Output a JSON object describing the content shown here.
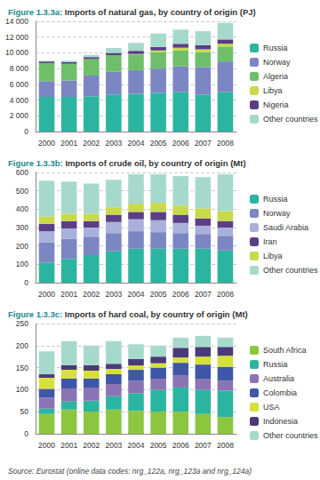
{
  "chart_data": [
    {
      "type": "bar",
      "title": "Figure 1.3.3a: Imports of natural gas, by country of origin (PJ)",
      "categories": [
        "2000",
        "2001",
        "2002",
        "2003",
        "2004",
        "2005",
        "2006",
        "2007",
        "2008"
      ],
      "series": [
        {
          "name": "Russia",
          "color": "#2bb5a0",
          "values": [
            4400,
            4400,
            4500,
            4700,
            4800,
            4900,
            5000,
            4700,
            5000
          ]
        },
        {
          "name": "Norway",
          "color": "#7b86c2",
          "values": [
            2000,
            2100,
            2600,
            2900,
            3000,
            3100,
            3300,
            3500,
            3900
          ]
        },
        {
          "name": "Algeria",
          "color": "#6fbf6a",
          "values": [
            2300,
            2100,
            2100,
            2100,
            2000,
            2100,
            2000,
            1900,
            1900
          ]
        },
        {
          "name": "Libya",
          "color": "#c8d94a",
          "values": [
            0,
            0,
            0,
            0,
            50,
            200,
            350,
            350,
            350
          ]
        },
        {
          "name": "Nigeria",
          "color": "#5b3f86",
          "values": [
            200,
            200,
            250,
            300,
            400,
            450,
            500,
            500,
            550
          ]
        },
        {
          "name": "Other countries",
          "color": "#a6d9cc",
          "values": [
            100,
            200,
            300,
            600,
            1000,
            1700,
            1800,
            1800,
            2100
          ]
        }
      ],
      "ylim": [
        0,
        14000
      ],
      "yticks": [
        0,
        {
          "value": 2000,
          "label": "2 000"
        },
        {
          "value": 4000,
          "label": "4 000"
        },
        {
          "value": 6000,
          "label": "6 000"
        },
        {
          "value": 8000,
          "label": "8 000"
        },
        {
          "value": 10000,
          "label": "10 000"
        },
        {
          "value": 12000,
          "label": "12 000"
        },
        {
          "value": 14000,
          "label": "14 000"
        }
      ],
      "stacked": true,
      "grid": true,
      "legend": "right"
    },
    {
      "type": "bar",
      "title": "Figure 1.3.3b: Imports of crude oil, by country of origin (Mt)",
      "categories": [
        "2000",
        "2001",
        "2002",
        "2003",
        "2004",
        "2005",
        "2006",
        "2007",
        "2008"
      ],
      "series": [
        {
          "name": "Russia",
          "color": "#2bb5a0",
          "values": [
            110,
            130,
            150,
            170,
            185,
            185,
            185,
            185,
            175
          ]
        },
        {
          "name": "Norway",
          "color": "#7b86c2",
          "values": [
            110,
            110,
            100,
            100,
            95,
            90,
            85,
            80,
            80
          ]
        },
        {
          "name": "Saudi Arabia",
          "color": "#a9b0dc",
          "values": [
            60,
            55,
            50,
            60,
            65,
            65,
            55,
            45,
            45
          ]
        },
        {
          "name": "Iran",
          "color": "#5b3f86",
          "values": [
            40,
            40,
            35,
            40,
            40,
            45,
            45,
            40,
            35
          ]
        },
        {
          "name": "Libya",
          "color": "#c8d94a",
          "values": [
            40,
            40,
            40,
            40,
            45,
            50,
            50,
            55,
            55
          ]
        },
        {
          "name": "Other countries",
          "color": "#a6d9cc",
          "values": [
            195,
            175,
            165,
            150,
            160,
            155,
            160,
            170,
            200
          ]
        }
      ],
      "ylim": [
        0,
        600
      ],
      "yticks": [
        0,
        100,
        200,
        300,
        400,
        500,
        600
      ],
      "stacked": true,
      "grid": true,
      "legend": "right"
    },
    {
      "type": "bar",
      "title": "Figure 1.3.3c: Imports of hard coal, by country of origin (Mt)",
      "categories": [
        "2000",
        "2001",
        "2002",
        "2003",
        "2004",
        "2005",
        "2006",
        "2007",
        "2008"
      ],
      "series": [
        {
          "name": "South Africa",
          "color": "#8cc63f",
          "values": [
            45,
            55,
            50,
            55,
            52,
            50,
            50,
            45,
            38
          ]
        },
        {
          "name": "Russia",
          "color": "#2bb5a0",
          "values": [
            12,
            18,
            25,
            30,
            40,
            50,
            55,
            55,
            60
          ]
        },
        {
          "name": "Australia",
          "color": "#8a74b4",
          "values": [
            25,
            30,
            30,
            28,
            28,
            25,
            28,
            25,
            22
          ]
        },
        {
          "name": "Colombia",
          "color": "#3f57a6",
          "values": [
            20,
            22,
            20,
            22,
            25,
            25,
            28,
            32,
            32
          ]
        },
        {
          "name": "USA",
          "color": "#d6e03a",
          "values": [
            25,
            20,
            18,
            12,
            10,
            10,
            12,
            18,
            25
          ]
        },
        {
          "name": "Indonesia",
          "color": "#4b3a78",
          "values": [
            8,
            10,
            12,
            12,
            15,
            15,
            22,
            22,
            20
          ]
        },
        {
          "name": "Other countries",
          "color": "#a6d9cc",
          "values": [
            52,
            55,
            45,
            51,
            33,
            25,
            23,
            25,
            21
          ]
        }
      ],
      "ylim": [
        0,
        250
      ],
      "yticks": [
        0,
        50,
        100,
        150,
        200,
        250
      ],
      "stacked": true,
      "grid": true,
      "legend": "right"
    }
  ],
  "source": "Source: Eurostat (online data codes: nrg_122a, nrg_123a and nrg_124a)"
}
